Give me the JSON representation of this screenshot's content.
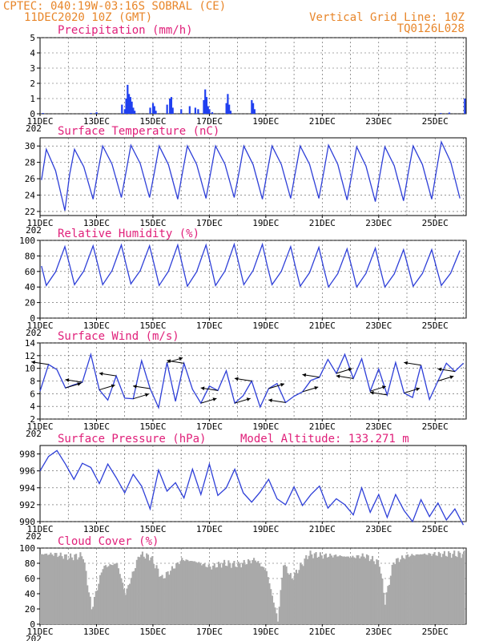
{
  "header": {
    "line1": "CPTEC:   040:19W-03:16S   SOBRAL (CE)",
    "line2": "11DEC2020 10Z (GMT)",
    "right1": "Vertical Grid Line: 10Z",
    "right2": "TQ0126L028"
  },
  "x_axis": {
    "labels": [
      "11DEC",
      "13DEC",
      "15DEC",
      "17DEC",
      "19DEC",
      "21DEC",
      "23DEC",
      "25DEC"
    ],
    "label_days": [
      0,
      2,
      4,
      6,
      8,
      10,
      12,
      14
    ],
    "year_fragment": "202",
    "day_range": [
      0,
      15.1
    ]
  },
  "colors": {
    "header": "#e8862a",
    "title": "#e0207a",
    "line": "#2e3fd8",
    "bar": "#2040f0",
    "cloud": "#a9a9a9"
  },
  "panels": {
    "precip": {
      "title": "Precipitation (mm/h)",
      "yticks": [
        "0",
        "1",
        "2",
        "3",
        "4",
        "5"
      ],
      "ylim": [
        0,
        5
      ]
    },
    "temp": {
      "title": "Surface Temperature (nC)",
      "yticks": [
        "22",
        "24",
        "26",
        "28",
        "30"
      ],
      "ylim": [
        21.5,
        31
      ]
    },
    "rh": {
      "title": "Relative Humidity (%)",
      "yticks": [
        "0",
        "20",
        "40",
        "60",
        "80",
        "100"
      ],
      "ylim": [
        0,
        100
      ]
    },
    "wind": {
      "title": "Surface Wind (m/s)",
      "yticks": [
        "2",
        "4",
        "6",
        "8",
        "10",
        "12",
        "14"
      ],
      "ylim": [
        2,
        14
      ]
    },
    "pres": {
      "title": "Surface Pressure (hPa)",
      "extra": "Model Altitude: 133.271 m",
      "yticks": [
        "990",
        "992",
        "994",
        "996",
        "998"
      ],
      "ylim": [
        990,
        999
      ]
    },
    "cloud": {
      "title": "Cloud Cover (%)",
      "yticks": [
        "0",
        "20",
        "40",
        "60",
        "80",
        "100"
      ],
      "ylim": [
        0,
        100
      ]
    }
  },
  "chart_data": [
    {
      "type": "bar",
      "title": "Precipitation (mm/h)",
      "x_unit": "days since 11DEC2020 10Z",
      "x": [
        0.1,
        1.8,
        2.0,
        2.9,
        3.0,
        3.05,
        3.1,
        3.15,
        3.2,
        3.25,
        3.3,
        3.35,
        3.9,
        4.0,
        4.05,
        4.1,
        4.5,
        4.6,
        4.65,
        4.7,
        5.0,
        5.3,
        5.5,
        5.6,
        5.8,
        5.85,
        5.9,
        5.95,
        6.0,
        6.1,
        6.6,
        6.65,
        6.7,
        6.75,
        7.5,
        7.55,
        7.6,
        14.2,
        14.5,
        15.05
      ],
      "values": [
        0.05,
        0.05,
        0.1,
        0.6,
        0.3,
        1.0,
        1.9,
        1.3,
        1.1,
        0.8,
        0.4,
        0.2,
        0.4,
        0.7,
        0.5,
        0.2,
        0.6,
        1.0,
        1.1,
        0.4,
        0.3,
        0.5,
        0.4,
        0.3,
        0.9,
        1.6,
        1.1,
        0.5,
        0.3,
        0.1,
        0.7,
        1.3,
        0.6,
        0.2,
        0.9,
        0.7,
        0.3,
        0.05,
        0.08,
        1.0
      ],
      "ylim": [
        0,
        5
      ]
    },
    {
      "type": "line",
      "title": "Surface Temperature (nC)",
      "daily_max": [
        29.6,
        29.6,
        30.0,
        30.1,
        30.0,
        30.0,
        30.0,
        30.0,
        30.0,
        30.0,
        30.1,
        29.9,
        29.9,
        30.0,
        30.5
      ],
      "daily_min": [
        22.1,
        23.5,
        23.7,
        23.7,
        23.5,
        23.6,
        23.7,
        23.5,
        23.6,
        23.6,
        23.4,
        23.2,
        23.3,
        23.5,
        23.6
      ],
      "ylim": [
        21.5,
        31
      ]
    },
    {
      "type": "line",
      "title": "Relative Humidity (%)",
      "daily_max": [
        92,
        93,
        94,
        93,
        94,
        94,
        95,
        95,
        92,
        91,
        89,
        90,
        88,
        88,
        87
      ],
      "daily_min": [
        42,
        43,
        43,
        44,
        42,
        41,
        42,
        43,
        43,
        41,
        40,
        40,
        40,
        41,
        42
      ],
      "ylim": [
        0,
        100
      ]
    },
    {
      "type": "line",
      "title": "Surface Wind (m/s)",
      "x": [
        0.0,
        0.3,
        0.6,
        0.9,
        1.2,
        1.5,
        1.8,
        2.1,
        2.4,
        2.7,
        3.0,
        3.3,
        3.6,
        3.9,
        4.2,
        4.5,
        4.8,
        5.1,
        5.4,
        5.7,
        6.0,
        6.3,
        6.6,
        6.9,
        7.2,
        7.5,
        7.8,
        8.1,
        8.4,
        8.7,
        9.0,
        9.3,
        9.6,
        9.9,
        10.2,
        10.5,
        10.8,
        11.1,
        11.4,
        11.7,
        12.0,
        12.3,
        12.6,
        12.9,
        13.2,
        13.5,
        13.8,
        14.1,
        14.4,
        14.7,
        15.0
      ],
      "values": [
        6.4,
        10.6,
        9.8,
        6.9,
        7.4,
        7.8,
        12.2,
        6.6,
        5.0,
        8.8,
        5.3,
        5.2,
        11.2,
        6.8,
        3.8,
        10.9,
        4.8,
        10.8,
        6.7,
        4.5,
        7.2,
        6.5,
        9.6,
        4.5,
        5.7,
        8.0,
        3.9,
        6.8,
        7.6,
        4.6,
        5.6,
        6.3,
        8.1,
        8.6,
        11.4,
        9.2,
        12.2,
        8.4,
        11.5,
        6.4,
        9.9,
        5.8,
        10.9,
        6.1,
        5.4,
        10.5,
        5.1,
        8.0,
        10.8,
        9.5,
        10.8
      ],
      "ylim": [
        2,
        14
      ]
    },
    {
      "type": "line",
      "title": "Surface Pressure (hPa)",
      "x": [
        0.0,
        0.3,
        0.6,
        0.9,
        1.2,
        1.5,
        1.8,
        2.1,
        2.4,
        2.7,
        3.0,
        3.3,
        3.6,
        3.9,
        4.2,
        4.5,
        4.8,
        5.1,
        5.4,
        5.7,
        6.0,
        6.3,
        6.6,
        6.9,
        7.2,
        7.5,
        7.8,
        8.1,
        8.4,
        8.7,
        9.0,
        9.3,
        9.6,
        9.9,
        10.2,
        10.5,
        10.8,
        11.1,
        11.4,
        11.7,
        12.0,
        12.3,
        12.6,
        12.9,
        13.2,
        13.5,
        13.8,
        14.1,
        14.4,
        14.7,
        15.0
      ],
      "values": [
        996.0,
        997.7,
        998.4,
        996.8,
        995.0,
        996.9,
        996.4,
        994.5,
        996.8,
        995.2,
        993.4,
        995.6,
        994.2,
        991.5,
        996.1,
        993.6,
        994.6,
        992.8,
        996.2,
        993.2,
        996.8,
        993.1,
        994.0,
        996.2,
        993.4,
        992.3,
        993.5,
        995.0,
        992.7,
        992.0,
        994.1,
        991.9,
        993.2,
        994.2,
        991.6,
        992.7,
        992.0,
        990.8,
        994.0,
        991.1,
        993.2,
        990.5,
        993.2,
        991.3,
        990.0,
        992.6,
        990.6,
        992.2,
        990.2,
        991.5,
        989.6
      ],
      "ylim": [
        990,
        999
      ]
    },
    {
      "type": "area",
      "title": "Cloud Cover (%)",
      "x": [
        0.0,
        0.5,
        1.0,
        1.5,
        1.8,
        2.2,
        2.7,
        3.0,
        3.5,
        3.9,
        4.3,
        5.0,
        5.5,
        6.0,
        6.5,
        7.0,
        7.6,
        8.0,
        8.4,
        8.6,
        8.9,
        9.5,
        10.0,
        10.5,
        11.0,
        11.5,
        12.0,
        12.2,
        12.5,
        13.0,
        13.5,
        14.0,
        14.5,
        15.0
      ],
      "values": [
        92,
        92,
        88,
        90,
        20,
        75,
        80,
        40,
        92,
        88,
        60,
        85,
        82,
        75,
        80,
        78,
        85,
        70,
        5,
        80,
        60,
        92,
        90,
        90,
        88,
        90,
        80,
        30,
        82,
        90,
        92,
        92,
        92,
        92
      ],
      "ylim": [
        0,
        100
      ]
    }
  ]
}
